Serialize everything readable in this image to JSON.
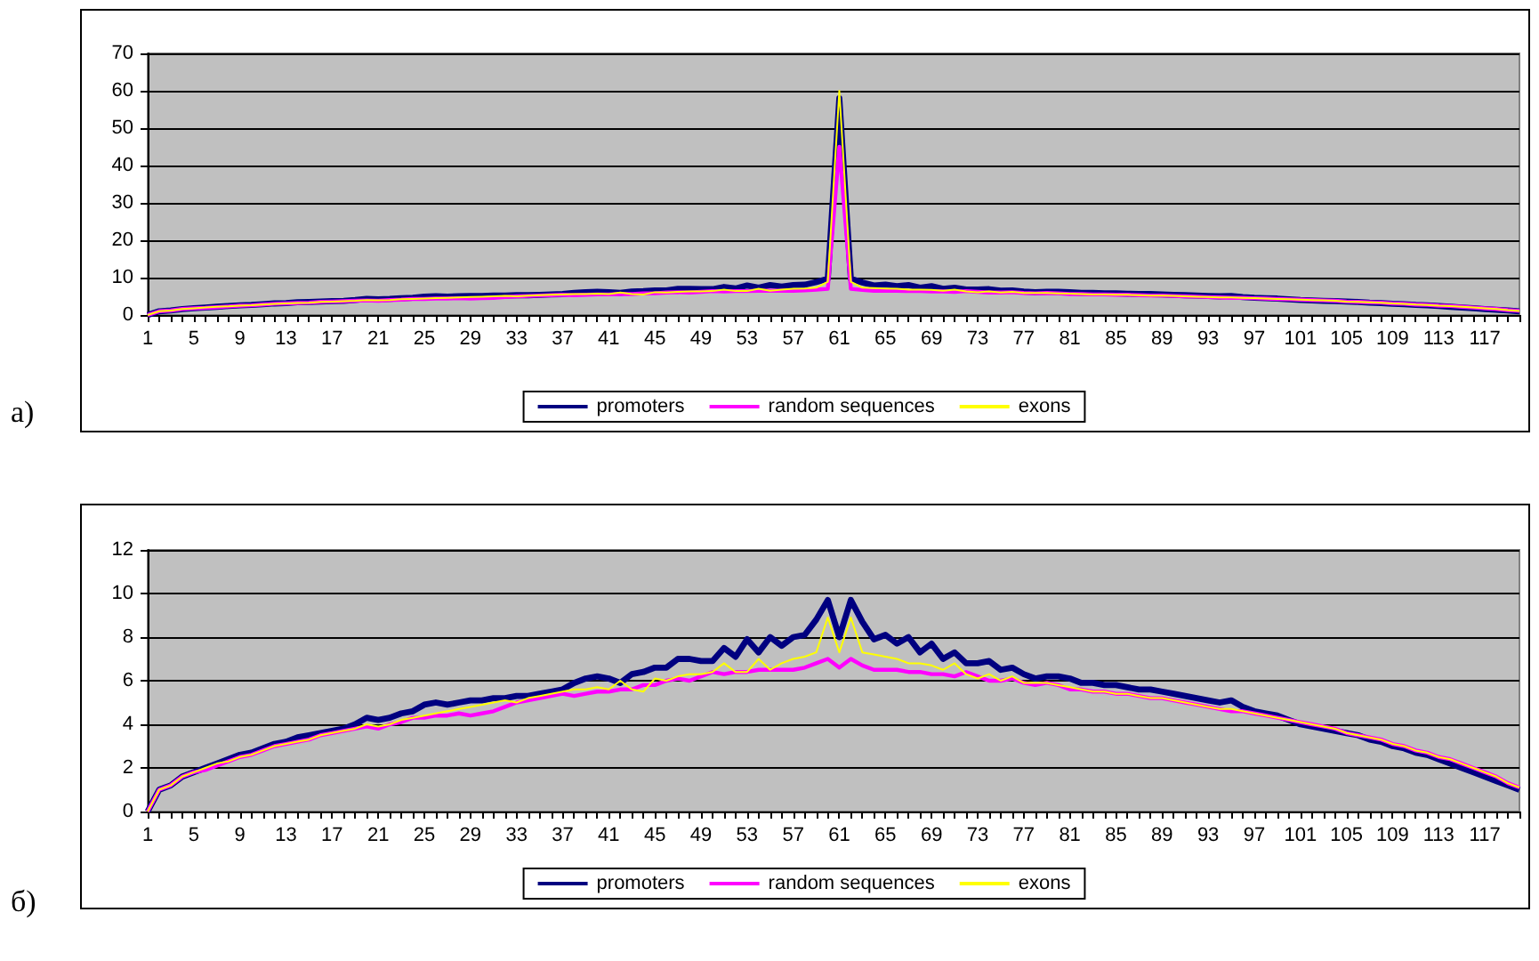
{
  "chart_data": [
    {
      "type": "line",
      "annotations": [
        "а)"
      ],
      "categories": [
        "1",
        null,
        null,
        null,
        "5",
        null,
        null,
        null,
        "9",
        null,
        null,
        null,
        "13",
        null,
        null,
        null,
        "17",
        null,
        null,
        null,
        "21",
        null,
        null,
        null,
        "25",
        null,
        null,
        null,
        "29",
        null,
        null,
        null,
        "33",
        null,
        null,
        null,
        "37",
        null,
        null,
        null,
        "41",
        null,
        null,
        null,
        "45",
        null,
        null,
        null,
        "49",
        null,
        null,
        null,
        "53",
        null,
        null,
        null,
        "57",
        null,
        null,
        null,
        "61",
        null,
        null,
        null,
        "65",
        null,
        null,
        null,
        "69",
        null,
        null,
        null,
        "73",
        null,
        null,
        null,
        "77",
        null,
        null,
        null,
        "81",
        null,
        null,
        null,
        "85",
        null,
        null,
        null,
        "89",
        null,
        null,
        null,
        "93",
        null,
        null,
        null,
        "97",
        null,
        null,
        null,
        "101",
        null,
        null,
        null,
        "105",
        null,
        null,
        null,
        "109",
        null,
        null,
        null,
        "113",
        null,
        null,
        null,
        "117",
        null,
        null,
        null
      ],
      "series": [
        {
          "name": "promoters",
          "color": "#000080",
          "values": [
            0,
            1.0,
            1.2,
            1.6,
            1.8,
            2.0,
            2.2,
            2.4,
            2.6,
            2.7,
            2.9,
            3.1,
            3.2,
            3.4,
            3.5,
            3.6,
            3.7,
            3.8,
            4.0,
            4.3,
            4.2,
            4.3,
            4.5,
            4.6,
            4.9,
            5.0,
            4.9,
            5.0,
            5.1,
            5.1,
            5.2,
            5.2,
            5.3,
            5.3,
            5.4,
            5.5,
            5.6,
            5.9,
            6.1,
            6.2,
            6.1,
            5.9,
            6.3,
            6.4,
            6.6,
            6.6,
            7.0,
            7.0,
            6.9,
            6.9,
            7.5,
            7.1,
            7.9,
            7.3,
            8.0,
            7.6,
            8.0,
            8.1,
            8.8,
            9.7,
            58,
            9.7,
            8.7,
            7.9,
            8.1,
            7.7,
            8.0,
            7.3,
            7.7,
            7.0,
            7.3,
            6.8,
            6.8,
            6.9,
            6.5,
            6.6,
            6.3,
            6.1,
            6.2,
            6.2,
            6.1,
            5.9,
            5.9,
            5.8,
            5.8,
            5.7,
            5.6,
            5.6,
            5.5,
            5.4,
            5.3,
            5.2,
            5.1,
            5.0,
            5.1,
            4.8,
            4.6,
            4.5,
            4.4,
            4.2,
            4.0,
            3.9,
            3.8,
            3.7,
            3.6,
            3.5,
            3.3,
            3.2,
            3.0,
            2.9,
            2.7,
            2.6,
            2.4,
            2.2,
            2.0,
            1.8,
            1.6,
            1.4,
            1.2,
            1.0
          ]
        },
        {
          "name": "random sequences",
          "color": "#ff00ff",
          "values": [
            0,
            1.0,
            1.2,
            1.6,
            1.8,
            1.9,
            2.1,
            2.3,
            2.5,
            2.6,
            2.8,
            3.0,
            3.1,
            3.2,
            3.3,
            3.5,
            3.6,
            3.7,
            3.8,
            3.9,
            3.8,
            4.0,
            4.1,
            4.3,
            4.3,
            4.4,
            4.4,
            4.5,
            4.4,
            4.5,
            4.6,
            4.8,
            5.0,
            5.1,
            5.2,
            5.3,
            5.4,
            5.3,
            5.4,
            5.5,
            5.5,
            5.6,
            5.6,
            5.8,
            5.8,
            6.0,
            6.1,
            6.0,
            6.2,
            6.4,
            6.3,
            6.4,
            6.4,
            6.5,
            6.5,
            6.5,
            6.5,
            6.6,
            6.8,
            7.0,
            45,
            7.0,
            6.7,
            6.5,
            6.5,
            6.5,
            6.4,
            6.4,
            6.3,
            6.3,
            6.2,
            6.4,
            6.2,
            6.0,
            6.0,
            6.1,
            5.9,
            5.8,
            5.9,
            5.8,
            5.6,
            5.6,
            5.5,
            5.5,
            5.4,
            5.4,
            5.3,
            5.2,
            5.2,
            5.1,
            5.0,
            4.9,
            4.8,
            4.7,
            4.6,
            4.6,
            4.5,
            4.4,
            4.3,
            4.2,
            4.1,
            4.0,
            3.9,
            3.8,
            3.6,
            3.5,
            3.4,
            3.3,
            3.1,
            3.0,
            2.8,
            2.7,
            2.5,
            2.4,
            2.2,
            2.0,
            1.8,
            1.6,
            1.3,
            1.1
          ]
        },
        {
          "name": "exons",
          "color": "#ffff00",
          "values": [
            0,
            1.0,
            1.2,
            1.6,
            1.8,
            2.0,
            2.2,
            2.3,
            2.5,
            2.6,
            2.8,
            3.0,
            3.1,
            3.2,
            3.3,
            3.5,
            3.6,
            3.7,
            3.8,
            4.0,
            3.9,
            4.0,
            4.2,
            4.3,
            4.4,
            4.5,
            4.6,
            4.7,
            4.8,
            4.9,
            5.0,
            5.1,
            5.0,
            5.2,
            5.3,
            5.4,
            5.5,
            5.6,
            5.6,
            5.7,
            5.6,
            6.0,
            5.6,
            5.5,
            6.1,
            6.0,
            6.2,
            6.3,
            6.3,
            6.4,
            6.8,
            6.4,
            6.4,
            7.0,
            6.5,
            6.8,
            7.0,
            7.1,
            7.3,
            8.9,
            60,
            8.9,
            7.3,
            7.2,
            7.1,
            7.0,
            6.8,
            6.8,
            6.7,
            6.5,
            6.8,
            6.3,
            6.1,
            6.3,
            6.0,
            6.2,
            5.9,
            5.9,
            5.9,
            5.8,
            5.7,
            5.6,
            5.5,
            5.5,
            5.4,
            5.4,
            5.3,
            5.2,
            5.2,
            5.1,
            5.0,
            4.9,
            4.8,
            4.7,
            4.7,
            4.6,
            4.5,
            4.4,
            4.3,
            4.2,
            4.1,
            4.0,
            3.9,
            3.8,
            3.6,
            3.5,
            3.4,
            3.3,
            3.1,
            3.0,
            2.8,
            2.7,
            2.5,
            2.4,
            2.2,
            2.0,
            1.8,
            1.6,
            1.3,
            1.1
          ]
        }
      ],
      "ylim": [
        0,
        70
      ],
      "yticks": [
        0,
        10,
        20,
        30,
        40,
        50,
        60,
        70
      ],
      "grid": "y",
      "legend": "bottom",
      "marker": "none",
      "line_style": "solid"
    },
    {
      "type": "line",
      "annotations": [
        "б)"
      ],
      "categories": [
        "1",
        null,
        null,
        null,
        "5",
        null,
        null,
        null,
        "9",
        null,
        null,
        null,
        "13",
        null,
        null,
        null,
        "17",
        null,
        null,
        null,
        "21",
        null,
        null,
        null,
        "25",
        null,
        null,
        null,
        "29",
        null,
        null,
        null,
        "33",
        null,
        null,
        null,
        "37",
        null,
        null,
        null,
        "41",
        null,
        null,
        null,
        "45",
        null,
        null,
        null,
        "49",
        null,
        null,
        null,
        "53",
        null,
        null,
        null,
        "57",
        null,
        null,
        null,
        "61",
        null,
        null,
        null,
        "65",
        null,
        null,
        null,
        "69",
        null,
        null,
        null,
        "73",
        null,
        null,
        null,
        "77",
        null,
        null,
        null,
        "81",
        null,
        null,
        null,
        "85",
        null,
        null,
        null,
        "89",
        null,
        null,
        null,
        "93",
        null,
        null,
        null,
        "97",
        null,
        null,
        null,
        "101",
        null,
        null,
        null,
        "105",
        null,
        null,
        null,
        "109",
        null,
        null,
        null,
        "113",
        null,
        null,
        null,
        "117",
        null,
        null,
        null
      ],
      "series": [
        {
          "name": "promoters",
          "color": "#000080",
          "values": [
            0,
            1.0,
            1.2,
            1.6,
            1.8,
            2.0,
            2.2,
            2.4,
            2.6,
            2.7,
            2.9,
            3.1,
            3.2,
            3.4,
            3.5,
            3.6,
            3.7,
            3.8,
            4.0,
            4.3,
            4.2,
            4.3,
            4.5,
            4.6,
            4.9,
            5.0,
            4.9,
            5.0,
            5.1,
            5.1,
            5.2,
            5.2,
            5.3,
            5.3,
            5.4,
            5.5,
            5.6,
            5.9,
            6.1,
            6.2,
            6.1,
            5.9,
            6.3,
            6.4,
            6.6,
            6.6,
            7.0,
            7.0,
            6.9,
            6.9,
            7.5,
            7.1,
            7.9,
            7.3,
            8.0,
            7.6,
            8.0,
            8.1,
            8.8,
            9.7,
            8.0,
            9.7,
            8.7,
            7.9,
            8.1,
            7.7,
            8.0,
            7.3,
            7.7,
            7.0,
            7.3,
            6.8,
            6.8,
            6.9,
            6.5,
            6.6,
            6.3,
            6.1,
            6.2,
            6.2,
            6.1,
            5.9,
            5.9,
            5.8,
            5.8,
            5.7,
            5.6,
            5.6,
            5.5,
            5.4,
            5.3,
            5.2,
            5.1,
            5.0,
            5.1,
            4.8,
            4.6,
            4.5,
            4.4,
            4.2,
            4.0,
            3.9,
            3.8,
            3.7,
            3.6,
            3.5,
            3.3,
            3.2,
            3.0,
            2.9,
            2.7,
            2.6,
            2.4,
            2.2,
            2.0,
            1.8,
            1.6,
            1.4,
            1.2,
            1.0
          ]
        },
        {
          "name": "random sequences",
          "color": "#ff00ff",
          "values": [
            0,
            1.0,
            1.2,
            1.6,
            1.8,
            1.9,
            2.1,
            2.3,
            2.5,
            2.6,
            2.8,
            3.0,
            3.1,
            3.2,
            3.3,
            3.5,
            3.6,
            3.7,
            3.8,
            3.9,
            3.8,
            4.0,
            4.1,
            4.3,
            4.3,
            4.4,
            4.4,
            4.5,
            4.4,
            4.5,
            4.6,
            4.8,
            5.0,
            5.1,
            5.2,
            5.3,
            5.4,
            5.3,
            5.4,
            5.5,
            5.5,
            5.6,
            5.6,
            5.8,
            5.8,
            6.0,
            6.1,
            6.0,
            6.2,
            6.4,
            6.3,
            6.4,
            6.4,
            6.5,
            6.5,
            6.5,
            6.5,
            6.6,
            6.8,
            7.0,
            6.6,
            7.0,
            6.7,
            6.5,
            6.5,
            6.5,
            6.4,
            6.4,
            6.3,
            6.3,
            6.2,
            6.4,
            6.2,
            6.0,
            6.0,
            6.1,
            5.9,
            5.8,
            5.9,
            5.8,
            5.6,
            5.6,
            5.5,
            5.5,
            5.4,
            5.4,
            5.3,
            5.2,
            5.2,
            5.1,
            5.0,
            4.9,
            4.8,
            4.7,
            4.6,
            4.6,
            4.5,
            4.4,
            4.3,
            4.2,
            4.1,
            4.0,
            3.9,
            3.8,
            3.6,
            3.5,
            3.4,
            3.3,
            3.1,
            3.0,
            2.8,
            2.7,
            2.5,
            2.4,
            2.2,
            2.0,
            1.8,
            1.6,
            1.3,
            1.1
          ]
        },
        {
          "name": "exons",
          "color": "#ffff00",
          "values": [
            0,
            1.0,
            1.2,
            1.6,
            1.8,
            2.0,
            2.2,
            2.3,
            2.5,
            2.6,
            2.8,
            3.0,
            3.1,
            3.2,
            3.3,
            3.5,
            3.6,
            3.7,
            3.8,
            4.0,
            3.9,
            4.0,
            4.2,
            4.3,
            4.4,
            4.5,
            4.6,
            4.7,
            4.8,
            4.9,
            5.0,
            5.1,
            5.0,
            5.2,
            5.3,
            5.4,
            5.5,
            5.6,
            5.6,
            5.7,
            5.6,
            6.0,
            5.6,
            5.5,
            6.1,
            6.0,
            6.2,
            6.3,
            6.3,
            6.4,
            6.8,
            6.4,
            6.4,
            7.0,
            6.5,
            6.8,
            7.0,
            7.1,
            7.3,
            8.9,
            7.3,
            8.9,
            7.3,
            7.2,
            7.1,
            7.0,
            6.8,
            6.8,
            6.7,
            6.5,
            6.8,
            6.3,
            6.1,
            6.3,
            6.0,
            6.2,
            5.9,
            5.9,
            5.9,
            5.8,
            5.7,
            5.6,
            5.5,
            5.5,
            5.4,
            5.4,
            5.3,
            5.2,
            5.2,
            5.1,
            5.0,
            4.9,
            4.8,
            4.7,
            4.7,
            4.6,
            4.5,
            4.4,
            4.3,
            4.2,
            4.1,
            4.0,
            3.9,
            3.8,
            3.6,
            3.5,
            3.4,
            3.3,
            3.1,
            3.0,
            2.8,
            2.7,
            2.5,
            2.4,
            2.2,
            2.0,
            1.8,
            1.6,
            1.3,
            1.1
          ]
        }
      ],
      "ylim": [
        0,
        12
      ],
      "yticks": [
        0,
        2,
        4,
        6,
        8,
        10,
        12
      ],
      "grid": "y",
      "legend": "bottom",
      "marker": "none",
      "line_style": "solid"
    }
  ]
}
